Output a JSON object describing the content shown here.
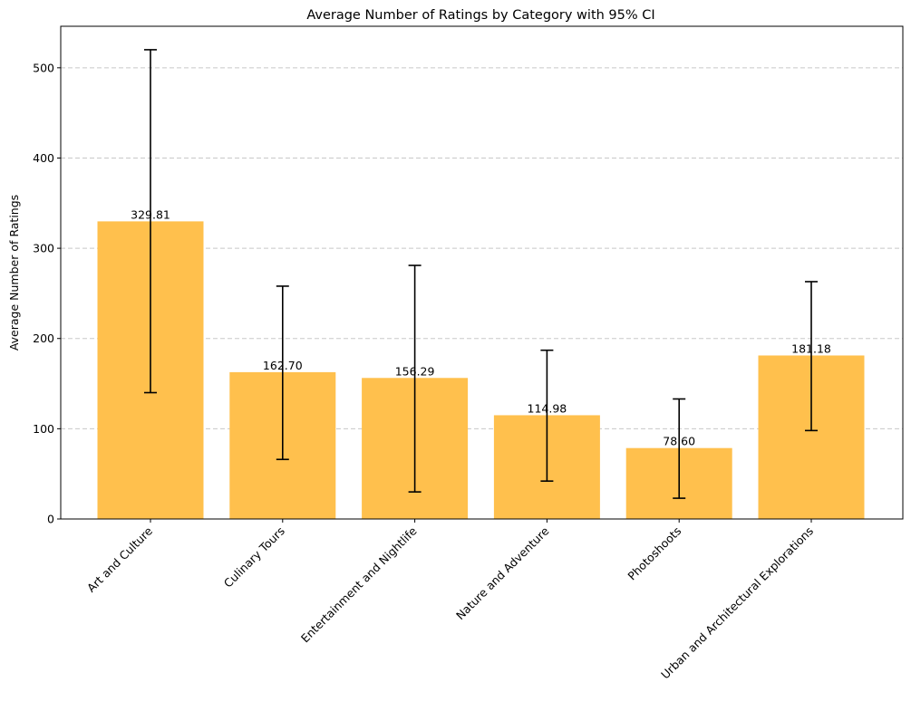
{
  "chart_data": {
    "type": "bar",
    "title": "Average Number of Ratings by Category with 95% CI",
    "xlabel": "",
    "ylabel": "Average Number of Ratings",
    "categories": [
      "Art and Culture",
      "Culinary Tours",
      "Entertainment and Nightlife",
      "Nature and Adventure",
      "Photoshoots",
      "Urban and Architectural Explorations"
    ],
    "values": [
      329.81,
      162.7,
      156.29,
      114.98,
      78.6,
      181.18
    ],
    "value_labels": [
      "329.81",
      "162.70",
      "156.29",
      "114.98",
      "78.60",
      "181.18"
    ],
    "ci_lower": [
      140,
      66,
      30,
      42,
      23,
      98
    ],
    "ci_upper": [
      520,
      258,
      281,
      187,
      133,
      263
    ],
    "ylim": [
      0,
      546
    ],
    "yticks": [
      0,
      100,
      200,
      300,
      400,
      500
    ],
    "ytick_labels": [
      "0",
      "100",
      "200",
      "300",
      "400",
      "500"
    ],
    "grid": "y-dashed",
    "bar_color": "#FFC04D",
    "errorbar_color": "#000000",
    "grid_color": "#c8c8c8"
  }
}
